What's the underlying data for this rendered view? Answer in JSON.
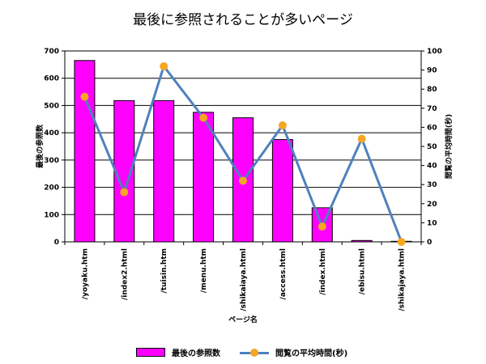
{
  "chart_data": {
    "type": "bar",
    "title": "最後に参照されることが多いページ",
    "xlabel": "ページ名",
    "ylabel": "最後の参照数",
    "y2label": "閲覧の平均時間(秒)",
    "ylim": [
      0,
      700
    ],
    "y2lim": [
      0,
      100
    ],
    "yticks": [
      0,
      100,
      200,
      300,
      400,
      500,
      600,
      700
    ],
    "y2ticks": [
      0,
      10,
      20,
      30,
      40,
      50,
      60,
      70,
      80,
      90,
      100
    ],
    "grid": true,
    "legend_position": "bottom",
    "categories": [
      "/yoyaku.htm",
      "/index2.html",
      "/tuisin.htm",
      "/menu.htm",
      "/shikaiaya.html",
      "/access.html",
      "/index.html",
      "/ebisu.html",
      "/shikajaya.html"
    ],
    "series": [
      {
        "name": "最後の参照数",
        "type": "bar",
        "axis": "left",
        "color": "#ff00ff",
        "values": [
          665,
          518,
          518,
          475,
          455,
          375,
          125,
          5,
          2
        ]
      },
      {
        "name": "閲覧の平均時間(秒)",
        "type": "line",
        "axis": "right",
        "color": "#4f81bd",
        "marker_color": "#f5a623",
        "values": [
          76,
          26,
          92,
          65,
          32,
          61,
          8,
          54,
          0
        ]
      }
    ]
  }
}
